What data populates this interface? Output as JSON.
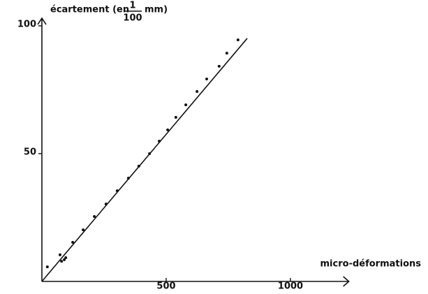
{
  "chart_data": {
    "type": "scatter",
    "y_label_parts": [
      "écartement (en",
      "1",
      "100",
      "mm)"
    ],
    "x_label": "micro-déformations",
    "xlim": [
      0,
      1235
    ],
    "ylim": [
      0,
      103
    ],
    "xticks": [
      500,
      1000
    ],
    "yticks": [
      50,
      100
    ],
    "series": [
      {
        "kind": "points",
        "color": "#111111",
        "x": [
          22,
          73,
          79,
          90,
          96,
          124,
          166,
          211,
          258,
          303,
          348,
          390,
          433,
          472,
          506,
          539,
          579,
          624,
          663,
          713,
          744,
          789
        ],
        "values": [
          5.7,
          10.4,
          7.9,
          8.5,
          9.3,
          15.3,
          20.2,
          25.4,
          30.3,
          35.5,
          40.4,
          45.1,
          50,
          54.9,
          59.3,
          64.2,
          69.1,
          74.3,
          79.2,
          84.2,
          89.3,
          94.5
        ]
      },
      {
        "kind": "line",
        "color": "#111111",
        "x": [
          0,
          826
        ],
        "values": [
          0,
          95.1
        ]
      }
    ]
  }
}
